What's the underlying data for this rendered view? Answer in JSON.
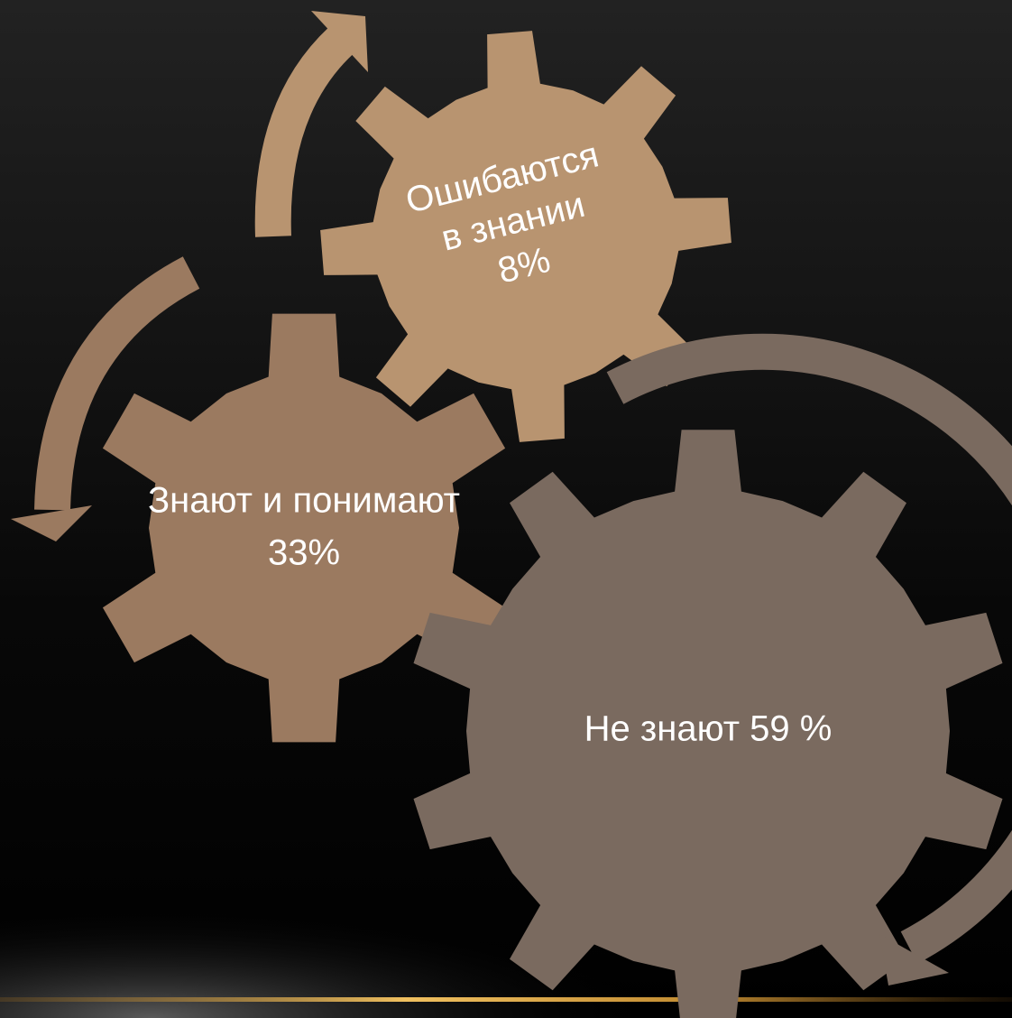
{
  "nodes": [
    {
      "label": [
        "Ошибаются",
        "в знании",
        "8%"
      ]
    },
    {
      "label": [
        "Знают и понимают",
        "33%"
      ]
    },
    {
      "label": [
        "Не знают 59 %"
      ]
    }
  ]
}
